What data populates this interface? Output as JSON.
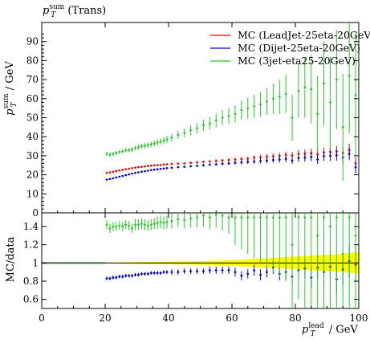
{
  "chart_data": {
    "type": "scatter",
    "title": "p_T^sum (Trans)",
    "title_parts": {
      "symbol": "p",
      "sup": "sum",
      "sub": "T",
      "rest": " (Trans)"
    },
    "ylabel_parts": {
      "symbol": "p",
      "sup": "sum",
      "sub": "T",
      "rest": " / GeV"
    },
    "xlabel_parts": {
      "symbol": "p",
      "sup": "lead",
      "sub": "T",
      "rest": " / GeV"
    },
    "ratio_ylabel": "MC/data",
    "xlim": [
      0,
      100
    ],
    "ylim": [
      0,
      100
    ],
    "ratio_ylim": [
      0.5,
      1.55
    ],
    "x_ticks": [
      "0",
      "20",
      "40",
      "60",
      "80",
      "100"
    ],
    "y_ticks": [
      "0",
      "10",
      "20",
      "30",
      "40",
      "50",
      "60",
      "70",
      "80",
      "90"
    ],
    "ratio_ticks": [
      "0.6",
      "0.8",
      "1",
      "1.2",
      "1.4"
    ],
    "legend_position": "top-right",
    "colors": {
      "red": "#ee0000",
      "blue": "#0000dd",
      "green": "#22cc22",
      "band": "#ffff00",
      "ref": "#336633"
    },
    "series": [
      {
        "name": "MC (LeadJet-25eta-20GeV)",
        "color": "#ee0000",
        "x": [
          20.5,
          21.5,
          22.5,
          23.5,
          24.5,
          25.5,
          26.5,
          27.5,
          28.5,
          29.5,
          30.5,
          31.5,
          32.5,
          33.5,
          34.5,
          35.5,
          36.5,
          37.5,
          38.5,
          39.5,
          41,
          43,
          45,
          47,
          49,
          51,
          53,
          55,
          57,
          59,
          61,
          63,
          65,
          67,
          69,
          71,
          73,
          75,
          77,
          79,
          81,
          83,
          85,
          87,
          89,
          91,
          93,
          95,
          97,
          99
        ],
        "y": [
          21,
          21.3,
          21.6,
          22,
          22.3,
          22.6,
          22.9,
          23.2,
          23.5,
          23.8,
          24,
          24.2,
          24.4,
          24.6,
          24.8,
          25,
          25.1,
          25.2,
          25.4,
          25.5,
          25.7,
          25.9,
          26,
          26.3,
          26.5,
          26.8,
          27,
          27.3,
          27.5,
          27.8,
          28,
          28.3,
          28.5,
          29,
          29.2,
          29.5,
          29.8,
          30,
          30.5,
          30.2,
          31,
          31.2,
          31.5,
          30.8,
          31.8,
          32,
          32.3,
          31.5,
          33,
          26
        ],
        "yerr": [
          0.3,
          0.3,
          0.3,
          0.3,
          0.3,
          0.3,
          0.3,
          0.3,
          0.3,
          0.3,
          0.4,
          0.4,
          0.4,
          0.4,
          0.4,
          0.4,
          0.4,
          0.4,
          0.4,
          0.4,
          0.5,
          0.5,
          0.5,
          0.6,
          0.6,
          0.7,
          0.7,
          0.8,
          0.8,
          0.9,
          1,
          1,
          1.1,
          1.2,
          1.3,
          1.4,
          1.5,
          1.6,
          1.7,
          1.8,
          2,
          2.1,
          2.2,
          2.4,
          2.5,
          2.7,
          2.9,
          3.1,
          3.3,
          3.5
        ],
        "ratio": [
          null
        ]
      },
      {
        "name": "MC (Dijet-25eta-20GeV)",
        "color": "#0000dd",
        "x": [
          20.5,
          21.5,
          22.5,
          23.5,
          24.5,
          25.5,
          26.5,
          27.5,
          28.5,
          29.5,
          30.5,
          31.5,
          32.5,
          33.5,
          34.5,
          35.5,
          36.5,
          37.5,
          38.5,
          39.5,
          41,
          43,
          45,
          47,
          49,
          51,
          53,
          55,
          57,
          59,
          61,
          63,
          65,
          67,
          69,
          71,
          73,
          75,
          77,
          79,
          81,
          83,
          85,
          87,
          89,
          91,
          93,
          95,
          97,
          99
        ],
        "y": [
          17.5,
          17.8,
          18.2,
          18.6,
          19,
          19.4,
          19.8,
          20.2,
          20.6,
          21,
          21.3,
          21.6,
          21.9,
          22.2,
          22.5,
          22.7,
          22.9,
          23.1,
          23.3,
          23.5,
          23.7,
          24,
          24.2,
          24.5,
          24.7,
          25,
          25.3,
          25.5,
          25.8,
          26,
          26.3,
          26.5,
          26.8,
          27,
          27.3,
          27.5,
          27.8,
          28,
          28.3,
          27.5,
          28.8,
          29,
          29.3,
          28,
          29.8,
          30,
          30.3,
          29,
          31,
          24
        ],
        "yerr": [
          0.3,
          0.3,
          0.3,
          0.3,
          0.3,
          0.3,
          0.3,
          0.3,
          0.3,
          0.3,
          0.4,
          0.4,
          0.4,
          0.4,
          0.4,
          0.4,
          0.4,
          0.4,
          0.4,
          0.4,
          0.5,
          0.5,
          0.5,
          0.6,
          0.6,
          0.7,
          0.7,
          0.8,
          0.8,
          0.9,
          1,
          1,
          1.1,
          1.2,
          1.3,
          1.4,
          1.5,
          1.6,
          1.7,
          1.8,
          2,
          2.1,
          2.2,
          2.4,
          2.5,
          2.7,
          2.9,
          3.1,
          3.3,
          3.5
        ]
      },
      {
        "name": "MC (3jet-eta25-20GeV)",
        "color": "#22cc22",
        "x": [
          20.5,
          21.5,
          22.5,
          23.5,
          24.5,
          25.5,
          26.5,
          27.5,
          28.5,
          29.5,
          30.5,
          31.5,
          32.5,
          33.5,
          34.5,
          35.5,
          36.5,
          37.5,
          38.5,
          39.5,
          41,
          43,
          45,
          47,
          49,
          51,
          53,
          55,
          57,
          59,
          61,
          63,
          65,
          67,
          69,
          71,
          73,
          75,
          77,
          79,
          81,
          83,
          85,
          87,
          89,
          91,
          93,
          95,
          97,
          99
        ],
        "y": [
          31,
          30.5,
          31,
          31.5,
          32,
          32.3,
          32.8,
          33,
          33.2,
          34,
          34.5,
          35,
          35.3,
          35.5,
          36,
          36.5,
          37,
          37.5,
          38,
          38.5,
          39.5,
          41,
          42,
          43.5,
          44.5,
          46,
          47,
          48.5,
          50,
          51,
          52,
          54,
          55,
          56,
          57,
          58.5,
          60,
          61,
          62.5,
          50,
          64,
          66,
          65,
          52,
          68,
          58,
          70,
          45,
          72,
          62
        ],
        "yerr": [
          1,
          1,
          1,
          1,
          1,
          1,
          1.1,
          1.1,
          1.2,
          1.2,
          1.3,
          1.3,
          1.4,
          1.4,
          1.5,
          1.5,
          1.6,
          1.7,
          1.8,
          1.9,
          2,
          2.2,
          2.4,
          2.6,
          2.8,
          3,
          3.3,
          3.6,
          3.9,
          4.2,
          4.6,
          5,
          5.5,
          6,
          6.5,
          7,
          8,
          9,
          10,
          12,
          14,
          16,
          18,
          20,
          22,
          24,
          26,
          28,
          30,
          32
        ]
      }
    ],
    "ratio_series": [
      {
        "name": "MC (LeadJet-25eta-20GeV)",
        "color": "#ee0000",
        "y": [
          null
        ]
      },
      {
        "name": "MC (Dijet-25eta-20GeV)",
        "color": "#0000dd",
        "y": [
          0.83,
          0.83,
          0.84,
          0.84,
          0.85,
          0.85,
          0.86,
          0.86,
          0.86,
          0.87,
          0.87,
          0.88,
          0.88,
          0.88,
          0.89,
          0.89,
          0.89,
          0.89,
          0.9,
          0.9,
          0.9,
          0.9,
          0.91,
          0.91,
          0.91,
          0.91,
          0.92,
          0.92,
          0.92,
          0.92,
          0.9,
          0.86,
          0.88,
          0.92,
          0.87,
          0.9,
          0.95,
          0.88,
          0.9,
          0.85,
          0.92,
          0.94,
          0.84,
          0.95,
          0.9,
          0.96,
          0.82,
          0.93,
          1.02,
          0.98
        ],
        "yerr": [
          0.02,
          0.02,
          0.02,
          0.02,
          0.02,
          0.02,
          0.02,
          0.02,
          0.02,
          0.02,
          0.02,
          0.02,
          0.02,
          0.02,
          0.02,
          0.02,
          0.02,
          0.02,
          0.02,
          0.02,
          0.03,
          0.03,
          0.03,
          0.03,
          0.03,
          0.03,
          0.04,
          0.04,
          0.04,
          0.04,
          0.05,
          0.05,
          0.05,
          0.06,
          0.06,
          0.06,
          0.07,
          0.07,
          0.08,
          0.08,
          0.1,
          0.11,
          0.12,
          0.13,
          0.14,
          0.15,
          0.16,
          0.17,
          0.18,
          0.2
        ]
      },
      {
        "name": "MC (3jet-eta25-20GeV)",
        "color": "#22cc22",
        "y": [
          1.42,
          1.38,
          1.4,
          1.4,
          1.41,
          1.4,
          1.42,
          1.41,
          1.38,
          1.42,
          1.42,
          1.43,
          1.42,
          1.41,
          1.42,
          1.43,
          1.44,
          1.45,
          1.44,
          1.45,
          1.46,
          1.48,
          1.47,
          1.49,
          1.5,
          1.52,
          1.5,
          1.53,
          1.52,
          1.5,
          1.5,
          1.5,
          1.5,
          1.5,
          1.5,
          1.5,
          1.5,
          1.5,
          1.5,
          1.2,
          1.5,
          1.5,
          1.5,
          1.3,
          1.5,
          1.4,
          1.5,
          1.1,
          1.5,
          1.3
        ],
        "yerr": [
          0.05,
          0.05,
          0.05,
          0.05,
          0.05,
          0.05,
          0.05,
          0.05,
          0.05,
          0.06,
          0.06,
          0.06,
          0.06,
          0.06,
          0.06,
          0.06,
          0.07,
          0.07,
          0.07,
          0.07,
          0.08,
          0.08,
          0.09,
          0.1,
          0.11,
          0.12,
          0.13,
          0.14,
          0.16,
          0.18,
          0.3,
          0.35,
          0.4,
          0.45,
          0.5,
          0.55,
          0.6,
          0.65,
          0.7,
          0.8,
          0.9,
          1,
          1,
          1,
          1,
          1,
          1,
          1,
          1,
          1
        ]
      }
    ],
    "band": {
      "x": [
        20,
        30,
        40,
        50,
        60,
        70,
        75,
        80,
        85,
        90,
        95,
        100
      ],
      "halfwidth": [
        0.005,
        0.01,
        0.015,
        0.02,
        0.03,
        0.05,
        0.06,
        0.07,
        0.08,
        0.09,
        0.1,
        0.12
      ]
    }
  }
}
